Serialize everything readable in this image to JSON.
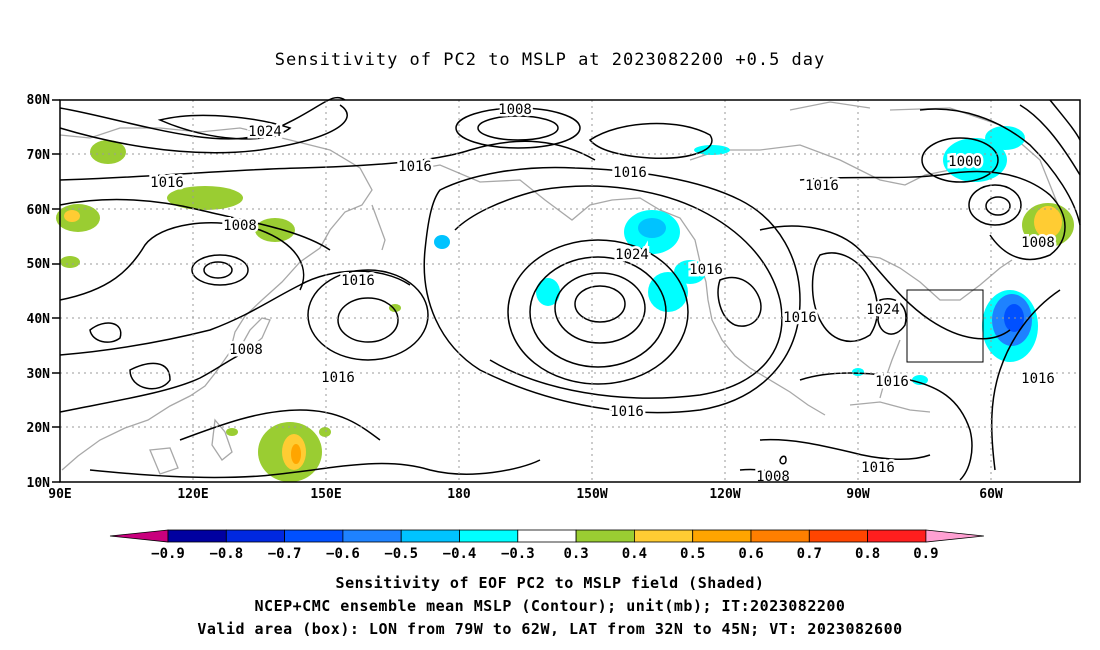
{
  "title": "Sensitivity of PC2 to MSLP at 2023082200 +0.5 day",
  "lat_labels": [
    "80N",
    "70N",
    "60N",
    "50N",
    "40N",
    "30N",
    "20N",
    "10N"
  ],
  "lon_labels": [
    "90E",
    "120E",
    "150E",
    "180",
    "150W",
    "120W",
    "90W",
    "60W"
  ],
  "contour_labels": [
    "1008",
    "1024",
    "1016",
    "1016",
    "1016",
    "1016",
    "1000",
    "1008",
    "1024",
    "1016",
    "1016",
    "1008",
    "1016",
    "1024",
    "1016",
    "1016",
    "1016",
    "1008",
    "1008",
    "1016",
    "1016"
  ],
  "colorbar": {
    "labels": [
      "-0.9",
      "-0.8",
      "-0.7",
      "-0.6",
      "-0.5",
      "-0.4",
      "-0.3",
      "0.3",
      "0.4",
      "0.5",
      "0.6",
      "0.7",
      "0.8",
      "0.9"
    ],
    "colors": [
      "#c8007d",
      "#0000a0",
      "#0028e0",
      "#0050ff",
      "#1e82ff",
      "#00c3ff",
      "#00ffff",
      "#ffffff",
      "#9acd32",
      "#ffcc33",
      "#ffa500",
      "#ff7f00",
      "#ff4500",
      "#ff1e1e",
      "#ffa0d2"
    ]
  },
  "caption": {
    "line1": "Sensitivity of EOF PC2 to MSLP field (Shaded)",
    "line2": "NCEP+CMC ensemble mean MSLP (Contour); unit(mb); IT:2023082200",
    "line3": "Valid area (box): LON from 79W to 62W, LAT from 32N to 45N; VT: 2023082600"
  }
}
